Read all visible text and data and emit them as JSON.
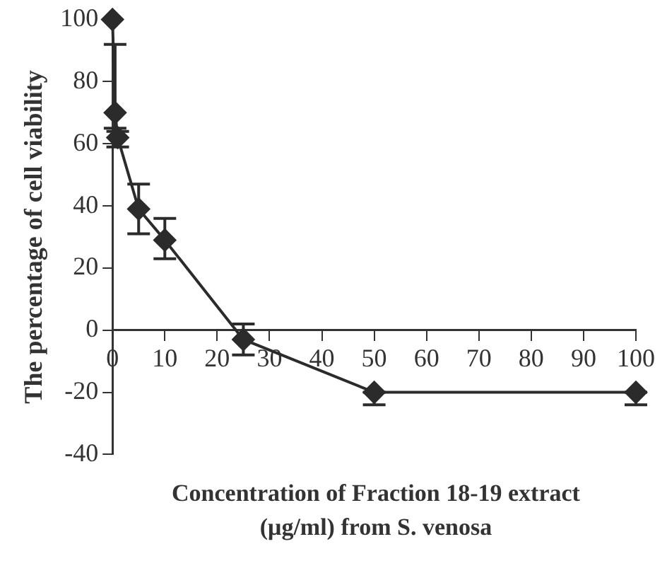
{
  "chart_data": {
    "type": "line",
    "xlabel": "Concentration of Fraction 18-19 extract (μg/ml) from S. venosa",
    "ylabel": "The percentage of cell viability",
    "x": [
      0,
      0.5,
      1,
      5,
      10,
      25,
      50,
      100
    ],
    "series": [
      {
        "color": "#2b2b2b",
        "values": [
          100,
          70,
          62,
          39,
          29,
          -3,
          -20,
          -20
        ],
        "errors": [
          null,
          [
            65,
            92
          ],
          [
            59,
            64
          ],
          [
            31,
            47
          ],
          [
            23,
            36
          ],
          [
            -8,
            2
          ],
          [
            -24,
            -20
          ],
          [
            -24,
            -20
          ]
        ]
      }
    ],
    "xlim": [
      0,
      100
    ],
    "xticks": [
      0,
      10,
      20,
      30,
      40,
      50,
      60,
      70,
      80,
      90,
      100
    ],
    "ylim": [
      -40,
      100
    ],
    "yticks": [
      -40,
      -20,
      0,
      20,
      40,
      60,
      80,
      100
    ],
    "grid": false,
    "legend": false,
    "marker": "diamond",
    "line_style": "solid"
  }
}
